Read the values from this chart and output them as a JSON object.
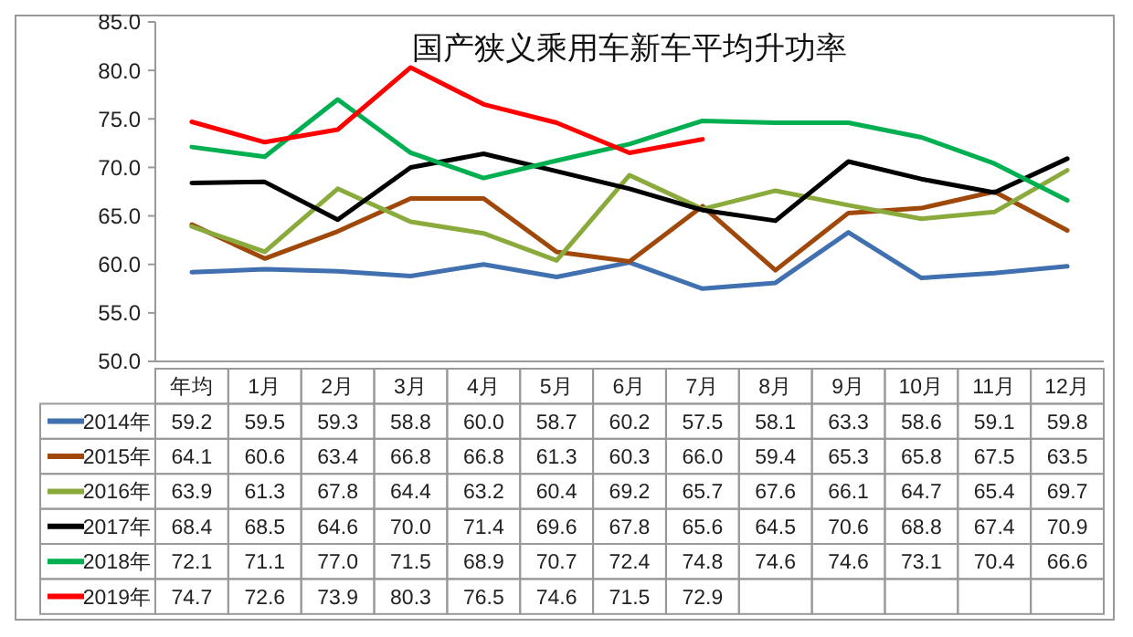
{
  "chart_data": {
    "type": "line",
    "title": "国产狭义乘用车新车平均升功率",
    "categories": [
      "年均",
      "1月",
      "2月",
      "3月",
      "4月",
      "5月",
      "6月",
      "7月",
      "8月",
      "9月",
      "10月",
      "11月",
      "12月"
    ],
    "ylim": [
      50,
      85
    ],
    "yticks": [
      {
        "value": 50,
        "label": "50.0"
      },
      {
        "value": 55,
        "label": "55.0"
      },
      {
        "value": 60,
        "label": "60.0"
      },
      {
        "value": 65,
        "label": "65.0"
      },
      {
        "value": 70,
        "label": "70.0"
      },
      {
        "value": 75,
        "label": "75.0"
      },
      {
        "value": 80,
        "label": "80.0"
      },
      {
        "value": 85,
        "label": "85.0"
      }
    ],
    "legend": "bottom",
    "marker": "none",
    "line_style": "solid",
    "series": [
      {
        "name": "2014年",
        "color": "#4070b0",
        "values": [
          59.2,
          59.5,
          59.3,
          58.8,
          60.0,
          58.7,
          60.2,
          57.5,
          58.1,
          63.3,
          58.6,
          59.1,
          59.8
        ],
        "value_labels": [
          "59.2",
          "59.5",
          "59.3",
          "58.8",
          "60.0",
          "58.7",
          "60.2",
          "57.5",
          "58.1",
          "63.3",
          "58.6",
          "59.1",
          "59.8"
        ]
      },
      {
        "name": "2015年",
        "color": "#a0480a",
        "values": [
          64.1,
          60.6,
          63.4,
          66.8,
          66.8,
          61.3,
          60.3,
          66.0,
          59.4,
          65.3,
          65.8,
          67.5,
          63.5
        ],
        "value_labels": [
          "64.1",
          "60.6",
          "63.4",
          "66.8",
          "66.8",
          "61.3",
          "60.3",
          "66.0",
          "59.4",
          "65.3",
          "65.8",
          "67.5",
          "63.5"
        ]
      },
      {
        "name": "2016年",
        "color": "#8aaa3c",
        "values": [
          63.9,
          61.3,
          67.8,
          64.4,
          63.2,
          60.4,
          69.2,
          65.7,
          67.6,
          66.1,
          64.7,
          65.4,
          69.7
        ],
        "value_labels": [
          "63.9",
          "61.3",
          "67.8",
          "64.4",
          "63.2",
          "60.4",
          "69.2",
          "65.7",
          "67.6",
          "66.1",
          "64.7",
          "65.4",
          "69.7"
        ]
      },
      {
        "name": "2017年",
        "color": "#000000",
        "values": [
          68.4,
          68.5,
          64.6,
          70.0,
          71.4,
          69.6,
          67.8,
          65.6,
          64.5,
          70.6,
          68.8,
          67.4,
          70.9
        ],
        "value_labels": [
          "68.4",
          "68.5",
          "64.6",
          "70.0",
          "71.4",
          "69.6",
          "67.8",
          "65.6",
          "64.5",
          "70.6",
          "68.8",
          "67.4",
          "70.9"
        ]
      },
      {
        "name": "2018年",
        "color": "#00b050",
        "values": [
          72.1,
          71.1,
          77.0,
          71.5,
          68.9,
          70.7,
          72.4,
          74.8,
          74.6,
          74.6,
          73.1,
          70.4,
          66.6
        ],
        "value_labels": [
          "72.1",
          "71.1",
          "77.0",
          "71.5",
          "68.9",
          "70.7",
          "72.4",
          "74.8",
          "74.6",
          "74.6",
          "73.1",
          "70.4",
          "66.6"
        ]
      },
      {
        "name": "2019年",
        "color": "#ff0000",
        "values": [
          74.7,
          72.6,
          73.9,
          80.3,
          76.5,
          74.6,
          71.5,
          72.9,
          null,
          null,
          null,
          null,
          null
        ],
        "value_labels": [
          "74.7",
          "72.6",
          "73.9",
          "80.3",
          "76.5",
          "74.6",
          "71.5",
          "72.9",
          null,
          null,
          null,
          null,
          null
        ]
      }
    ]
  }
}
